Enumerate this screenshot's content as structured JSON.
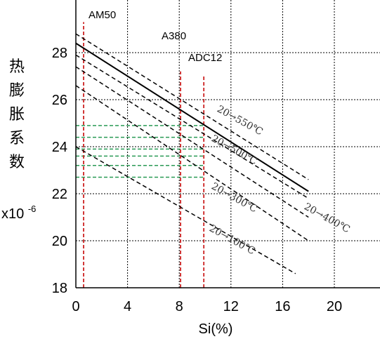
{
  "chart_data": {
    "type": "line",
    "xlabel": "Si(%)",
    "ylabel_chars": [
      "热",
      "膨",
      "胀",
      "系",
      "数"
    ],
    "unit_base": "x10",
    "unit_exp": "-6",
    "xlim": [
      0,
      24
    ],
    "ylim": [
      18,
      30
    ],
    "xticks": [
      0,
      4,
      8,
      12,
      16,
      20
    ],
    "yticks": [
      18,
      20,
      22,
      24,
      26,
      28
    ],
    "grid": true,
    "series": [
      {
        "name": "20→550℃",
        "style": "dashed",
        "x": [
          0,
          18
        ],
        "y": [
          28.8,
          22.6
        ]
      },
      {
        "style": "solid",
        "x": [
          0,
          18
        ],
        "y": [
          28.4,
          22.1
        ]
      },
      {
        "name": "20→500℃",
        "style": "dashed",
        "x": [
          0,
          18
        ],
        "y": [
          27.9,
          21.8
        ]
      },
      {
        "name": "20→400℃",
        "style": "dashed",
        "x": [
          0,
          18
        ],
        "y": [
          27.4,
          21.0
        ]
      },
      {
        "name": "20→300℃",
        "style": "dashed",
        "x": [
          0,
          18
        ],
        "y": [
          26.6,
          20.0
        ]
      },
      {
        "name": "20→100℃",
        "style": "dashed",
        "x": [
          0,
          17
        ],
        "y": [
          24.0,
          18.6
        ]
      }
    ],
    "alloys": [
      {
        "name": "AM50",
        "x": 0.6
      },
      {
        "name": "A380",
        "x": 8.1
      },
      {
        "name": "ADC12",
        "x": 9.9
      }
    ],
    "alloy_lines": [
      {
        "x": 0.6,
        "color": "#cc2222",
        "y": [
          18,
          29.3
        ]
      },
      {
        "x": 8.1,
        "color": "#cc2222",
        "y": [
          18,
          27.2
        ]
      },
      {
        "x": 9.9,
        "color": "#cc2222",
        "y": [
          18,
          27.0
        ]
      }
    ],
    "guide_lines": [
      {
        "y": 24.9,
        "x": [
          0,
          10
        ]
      },
      {
        "y": 24.4,
        "x": [
          0,
          10
        ]
      },
      {
        "y": 23.9,
        "x": [
          0,
          10
        ]
      },
      {
        "y": 23.6,
        "x": [
          0,
          10
        ]
      },
      {
        "y": 23.2,
        "x": [
          0,
          10
        ]
      },
      {
        "y": 22.7,
        "x": [
          0,
          10
        ]
      }
    ],
    "guide_color": "#2a9a55"
  }
}
